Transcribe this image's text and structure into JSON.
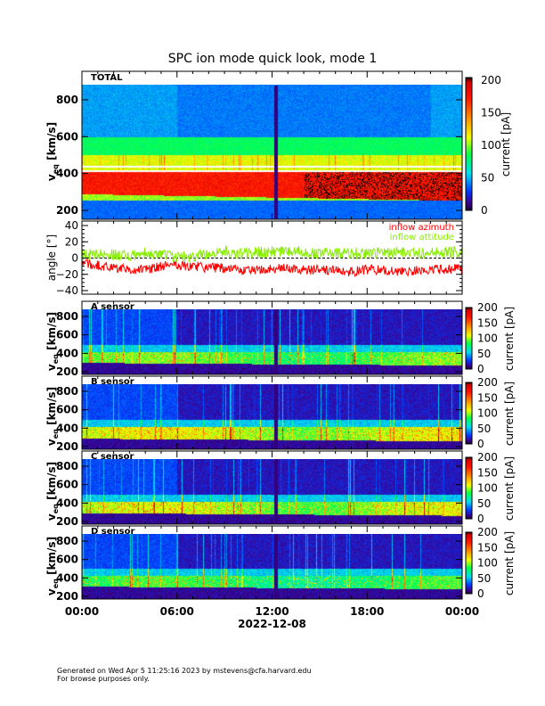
{
  "title": "SPC ion mode quick look, mode 1",
  "footer": {
    "line1": "Generated on Wed Apr  5 11:25:16 2023 by mstevens@cfa.harvard.edu",
    "line2": "For browse purposes only."
  },
  "chart_data": [
    {
      "type": "heatmap",
      "panel_label": "TOTAL",
      "ylabel": "v_eq [km/s]",
      "yticks": [
        200,
        400,
        600,
        800
      ],
      "ylim": [
        150,
        950
      ],
      "colorbar": {
        "label": "current [pA]",
        "range": [
          0,
          200
        ],
        "ticks": [
          0,
          50,
          100,
          150,
          200
        ]
      },
      "description_peak_band_kms": [
        300,
        420
      ]
    },
    {
      "type": "line",
      "ylabel": "angle [°]",
      "yticks": [
        -40,
        -20,
        0,
        20,
        40
      ],
      "ylim": [
        -45,
        45
      ],
      "x_hours": [
        0,
        1,
        2,
        3,
        4,
        5,
        6,
        7,
        8,
        9,
        10,
        11,
        12,
        13,
        14,
        15,
        16,
        17,
        18,
        19,
        20,
        21,
        22,
        23,
        24
      ],
      "series": [
        {
          "name": "inflow azimuth",
          "color": "#ff0000",
          "values": [
            -6,
            -9,
            -12,
            -14,
            -14,
            -10,
            -8,
            -10,
            -12,
            -12,
            -15,
            -14,
            -12,
            -13,
            -15,
            -14,
            -16,
            -17,
            -14,
            -15,
            -17,
            -16,
            -14,
            -14,
            -12
          ]
        },
        {
          "name": "inflow attitude",
          "color": "#88ee00",
          "values": [
            4,
            5,
            5,
            3,
            6,
            4,
            1,
            2,
            6,
            8,
            6,
            7,
            8,
            9,
            8,
            6,
            7,
            6,
            6,
            7,
            8,
            6,
            7,
            8,
            6
          ]
        }
      ]
    },
    {
      "type": "heatmap",
      "panel_label": "A sensor",
      "ylabel": "v_eq [km/s]",
      "yticks": [
        200,
        400,
        600,
        800
      ],
      "colorbar": {
        "label": "current [pA]",
        "range": [
          0,
          200
        ],
        "ticks": [
          0,
          50,
          100,
          150,
          200
        ]
      }
    },
    {
      "type": "heatmap",
      "panel_label": "B sensor",
      "ylabel": "v_eq [km/s]",
      "yticks": [
        200,
        400,
        600,
        800
      ],
      "colorbar": {
        "label": "current [pA]",
        "range": [
          0,
          200
        ],
        "ticks": [
          0,
          50,
          100,
          150,
          200
        ]
      }
    },
    {
      "type": "heatmap",
      "panel_label": "C sensor",
      "ylabel": "v_eq [km/s]",
      "yticks": [
        200,
        400,
        600,
        800
      ],
      "colorbar": {
        "label": "current [pA]",
        "range": [
          0,
          200
        ],
        "ticks": [
          0,
          50,
          100,
          150,
          200
        ]
      }
    },
    {
      "type": "heatmap",
      "panel_label": "D sensor",
      "ylabel": "v_eq [km/s]",
      "yticks": [
        200,
        400,
        600,
        800
      ],
      "colorbar": {
        "label": "current [pA]",
        "range": [
          0,
          200
        ],
        "ticks": [
          0,
          50,
          100,
          150,
          200
        ]
      }
    }
  ],
  "x_axis": {
    "ticks": [
      "00:00",
      "06:00",
      "12:00",
      "18:00",
      "00:00"
    ],
    "label": "2022-12-08"
  }
}
